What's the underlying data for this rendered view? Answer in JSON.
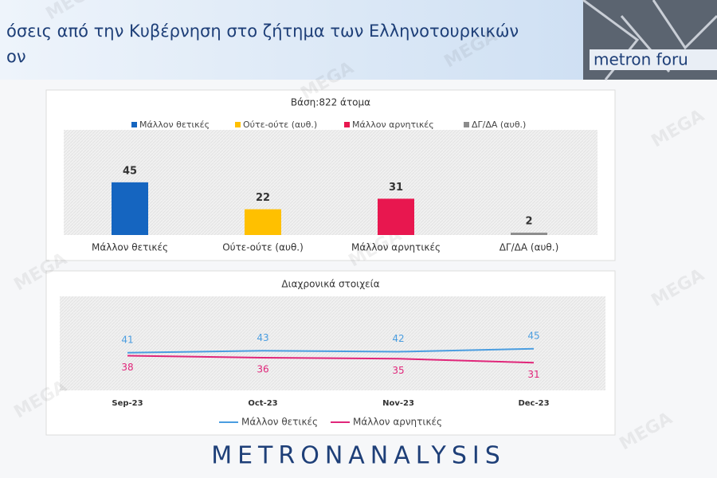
{
  "header": {
    "title_lines": [
      "όσεις από την Κυβέρνηση στο ζήτημα των Ελληνοτουρκικών",
      "ον"
    ],
    "logo": "metron foru"
  },
  "watermark": "MEGA",
  "footer": {
    "brand": "METRONANALYSIS"
  },
  "chart_data": [
    {
      "type": "bar",
      "subtitle": "Βάση:822 άτομα",
      "categories": [
        "Μάλλον θετικές",
        "Ούτε-ούτε (αυθ.)",
        "Μάλλον αρνητικές",
        "ΔΓ/ΔΑ (αυθ.)"
      ],
      "values": [
        45,
        22,
        31,
        2
      ],
      "colors": [
        "#1565c0",
        "#ffc000",
        "#e8174f",
        "#8c8c8c"
      ],
      "ylim": [
        0,
        100
      ]
    },
    {
      "type": "line",
      "title": "Διαχρονικά στοιχεία",
      "categories": [
        "Sep-23",
        "Oct-23",
        "Nov-23",
        "Dec-23"
      ],
      "series": [
        {
          "name": "Μάλλον θετικές",
          "color": "#4a9de0",
          "values": [
            41,
            43,
            42,
            45
          ]
        },
        {
          "name": "Μάλλον αρνητικές",
          "color": "#e0267a",
          "values": [
            38,
            36,
            35,
            31
          ]
        }
      ],
      "ylim": [
        0,
        100
      ]
    }
  ]
}
